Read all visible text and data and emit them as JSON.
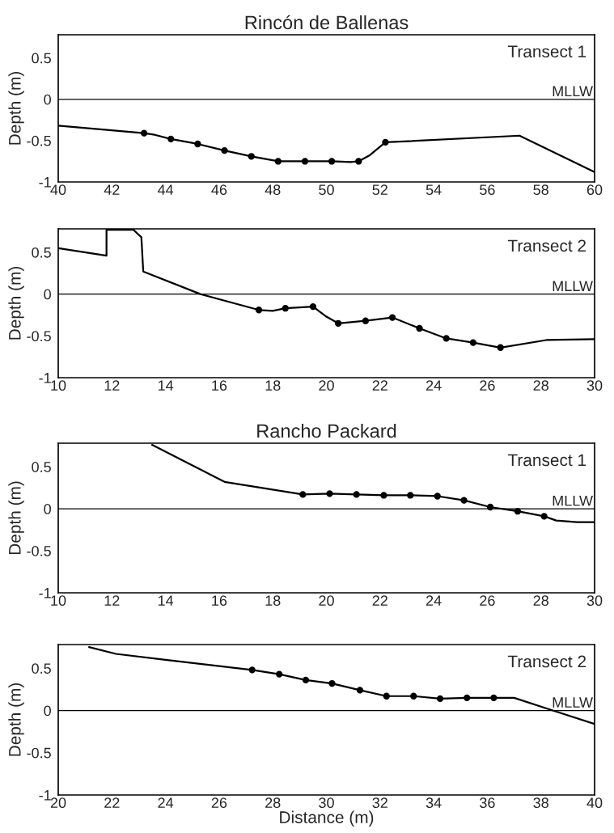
{
  "chart_data": [
    {
      "type": "line",
      "title": "Rincón de Ballenas",
      "ylabel": "Depth (m)",
      "xlim": [
        40,
        60
      ],
      "ylim": [
        -1,
        0.78
      ],
      "xticks": [
        40,
        42,
        44,
        46,
        48,
        50,
        52,
        54,
        56,
        58,
        60
      ],
      "yticks": [
        -1,
        -0.5,
        0,
        0.5
      ],
      "annotations": [
        "Transect 1"
      ],
      "ref_lines": [
        {
          "axis": "y",
          "value": 0,
          "label": "MLLW"
        }
      ],
      "series": [
        {
          "color": "#000000",
          "marker": "none",
          "x": [
            40,
            43.2,
            43.6,
            44.2,
            45.2,
            46.2,
            47.2,
            48.2,
            49.2,
            50.2,
            50.9,
            51.2,
            51.6,
            52.2,
            57.2,
            60
          ],
          "values": [
            -0.32,
            -0.41,
            -0.43,
            -0.48,
            -0.54,
            -0.62,
            -0.69,
            -0.75,
            -0.75,
            -0.75,
            -0.76,
            -0.75,
            -0.68,
            -0.52,
            -0.44,
            -0.88
          ]
        },
        {
          "type": "scatter",
          "color": "#000000",
          "marker": "circle",
          "x": [
            43.2,
            44.2,
            45.2,
            46.2,
            47.2,
            48.2,
            49.2,
            50.2,
            51.2,
            52.2
          ],
          "values": [
            -0.41,
            -0.48,
            -0.54,
            -0.62,
            -0.69,
            -0.75,
            -0.75,
            -0.75,
            -0.75,
            -0.52
          ]
        }
      ]
    },
    {
      "type": "line",
      "ylabel": "Depth (m)",
      "xlim": [
        10,
        30
      ],
      "ylim": [
        -1,
        0.78
      ],
      "xticks": [
        10,
        12,
        14,
        16,
        18,
        20,
        22,
        24,
        26,
        28,
        30
      ],
      "yticks": [
        -1,
        -0.5,
        0,
        0.5
      ],
      "annotations": [
        "Transect 2"
      ],
      "ref_lines": [
        {
          "axis": "y",
          "value": 0,
          "label": "MLLW"
        }
      ],
      "series": [
        {
          "color": "#000000",
          "marker": "none",
          "x": [
            10,
            11.8,
            11.8,
            12.8,
            13.1,
            13.17,
            15.3,
            17.48,
            18.0,
            18.47,
            19.5,
            20.0,
            20.44,
            21.46,
            22.46,
            23.47,
            24.47,
            25.47,
            26.49,
            28.2,
            30
          ],
          "values": [
            0.55,
            0.46,
            0.77,
            0.77,
            0.68,
            0.27,
            0,
            -0.19,
            -0.2,
            -0.17,
            -0.15,
            -0.27,
            -0.35,
            -0.32,
            -0.28,
            -0.41,
            -0.53,
            -0.58,
            -0.64,
            -0.55,
            -0.54
          ]
        },
        {
          "type": "scatter",
          "color": "#000000",
          "marker": "circle",
          "x": [
            17.48,
            18.47,
            19.5,
            20.44,
            21.46,
            22.46,
            23.47,
            24.47,
            25.47,
            26.49
          ],
          "values": [
            -0.19,
            -0.17,
            -0.15,
            -0.35,
            -0.32,
            -0.28,
            -0.41,
            -0.53,
            -0.58,
            -0.64
          ]
        }
      ]
    },
    {
      "type": "line",
      "title": "Rancho Packard",
      "ylabel": "Depth (m)",
      "xlim": [
        10,
        30
      ],
      "ylim": [
        -1,
        0.78
      ],
      "xticks": [
        10,
        12,
        14,
        16,
        18,
        20,
        22,
        24,
        26,
        28,
        30
      ],
      "yticks": [
        -1,
        -0.5,
        0,
        0.5
      ],
      "annotations": [
        "Transect 1"
      ],
      "ref_lines": [
        {
          "axis": "y",
          "value": 0,
          "label": "MLLW"
        }
      ],
      "series": [
        {
          "color": "#000000",
          "marker": "none",
          "x": [
            13.5,
            16.2,
            19.12,
            20.12,
            21.12,
            22.14,
            23.13,
            24.14,
            25.13,
            26.11,
            27.13,
            28.12,
            28.57,
            29.35,
            30
          ],
          "values": [
            0.76,
            0.32,
            0.17,
            0.18,
            0.17,
            0.16,
            0.16,
            0.15,
            0.1,
            0.02,
            -0.03,
            -0.09,
            -0.14,
            -0.16,
            -0.16
          ]
        },
        {
          "type": "scatter",
          "color": "#000000",
          "marker": "circle",
          "x": [
            19.12,
            20.12,
            21.12,
            22.14,
            23.13,
            24.14,
            25.13,
            26.11,
            27.13,
            28.12
          ],
          "values": [
            0.17,
            0.18,
            0.17,
            0.16,
            0.16,
            0.15,
            0.1,
            0.02,
            -0.03,
            -0.09
          ]
        }
      ]
    },
    {
      "type": "line",
      "xlabel": "Distance (m)",
      "ylabel": "Depth (m)",
      "xlim": [
        20,
        40
      ],
      "ylim": [
        -1,
        0.78
      ],
      "xticks": [
        20,
        22,
        24,
        26,
        28,
        30,
        32,
        34,
        36,
        38,
        40
      ],
      "yticks": [
        -1,
        -0.5,
        0,
        0.5
      ],
      "annotations": [
        "Transect 2"
      ],
      "ref_lines": [
        {
          "axis": "y",
          "value": 0,
          "label": "MLLW"
        }
      ],
      "series": [
        {
          "color": "#000000",
          "marker": "none",
          "x": [
            21.15,
            22.15,
            24.0,
            27.23,
            28.24,
            29.23,
            30.21,
            31.25,
            32.24,
            33.25,
            34.24,
            35.24,
            36.24,
            37.0,
            38.35,
            40
          ],
          "values": [
            0.75,
            0.67,
            0.6,
            0.48,
            0.43,
            0.36,
            0.32,
            0.24,
            0.17,
            0.17,
            0.14,
            0.15,
            0.15,
            0.15,
            0.01,
            -0.16
          ]
        },
        {
          "type": "scatter",
          "color": "#000000",
          "marker": "circle",
          "x": [
            27.23,
            28.24,
            29.23,
            30.21,
            31.25,
            32.24,
            33.25,
            34.24,
            35.24,
            36.24
          ],
          "values": [
            0.48,
            0.43,
            0.36,
            0.32,
            0.24,
            0.17,
            0.17,
            0.14,
            0.15,
            0.15
          ]
        }
      ]
    }
  ]
}
